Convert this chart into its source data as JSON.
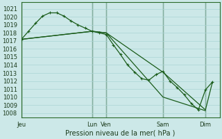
{
  "bg_color": "#cce8e8",
  "grid_color": "#aad4d4",
  "line_color": "#1a5c1a",
  "xlabel": "Pression niveau de la mer( hPa )",
  "ylim": [
    1007.5,
    1021.8
  ],
  "ytick_values": [
    1008,
    1009,
    1010,
    1011,
    1012,
    1013,
    1014,
    1015,
    1016,
    1017,
    1018,
    1019,
    1020,
    1021
  ],
  "xmin": 0,
  "xmax": 28,
  "day_ticks": [
    0,
    10,
    12,
    20,
    26
  ],
  "day_labels": [
    "Jeu",
    "Lun",
    "Ven",
    "Sam",
    "Dim"
  ],
  "vlines": [
    0,
    10,
    12,
    20,
    26
  ],
  "line1_x": [
    0,
    1,
    2,
    3,
    4,
    5,
    6,
    7,
    8,
    9,
    10,
    11,
    12,
    13,
    14,
    15,
    16,
    17,
    18,
    19,
    20,
    21,
    22,
    23,
    24,
    25,
    26,
    27
  ],
  "line1_y": [
    1017.2,
    1018.2,
    1019.2,
    1020.1,
    1020.5,
    1020.5,
    1020.1,
    1019.5,
    1019.0,
    1018.6,
    1018.2,
    1018.0,
    1017.8,
    1016.5,
    1015.3,
    1014.0,
    1013.1,
    1012.3,
    1012.1,
    1012.8,
    1013.2,
    1012.0,
    1011.2,
    1010.3,
    1009.2,
    1008.4,
    1010.9,
    1011.9
  ],
  "line2_x": [
    0,
    10,
    12,
    20,
    26,
    27
  ],
  "line2_y": [
    1017.2,
    1018.2,
    1018.0,
    1013.1,
    1008.4,
    1011.9
  ],
  "line3_x": [
    0,
    10,
    12,
    20,
    26
  ],
  "line3_y": [
    1017.2,
    1018.2,
    1018.0,
    1010.0,
    1008.3
  ],
  "line1_markers_x": [
    0,
    1,
    2,
    3,
    4,
    5,
    6,
    7,
    8,
    9,
    10,
    11,
    12,
    13,
    14,
    15,
    16,
    17,
    18,
    19,
    20,
    21,
    22,
    23,
    24,
    25,
    26,
    27
  ],
  "line1_markers_y": [
    1017.2,
    1018.2,
    1019.2,
    1020.1,
    1020.5,
    1020.5,
    1020.1,
    1019.5,
    1019.0,
    1018.6,
    1018.2,
    1018.0,
    1017.8,
    1016.5,
    1015.3,
    1014.0,
    1013.1,
    1012.3,
    1012.1,
    1012.8,
    1013.2,
    1012.0,
    1011.2,
    1010.3,
    1009.2,
    1008.4,
    1010.9,
    1011.9
  ]
}
